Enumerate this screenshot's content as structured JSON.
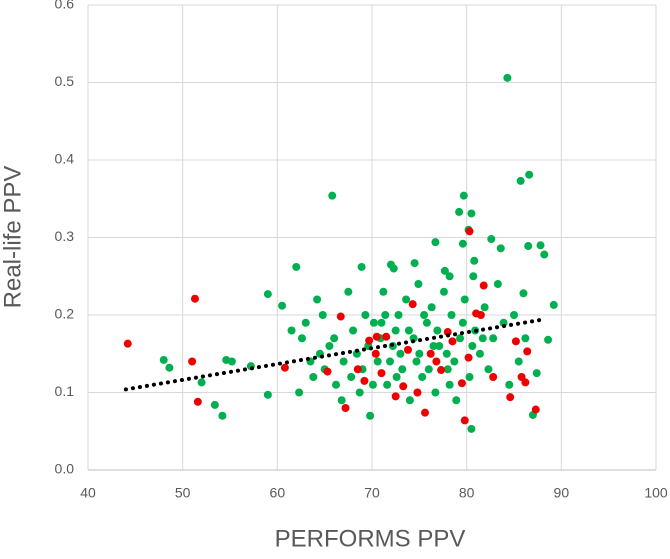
{
  "chart_data": {
    "type": "scatter",
    "x_label": "PERFORMS PPV",
    "y_label": "Real-life PPV",
    "xlim": [
      40,
      100
    ],
    "xticks": [
      40,
      50,
      60,
      70,
      80,
      90,
      100
    ],
    "ylim": [
      0,
      0.6
    ],
    "yticks": [
      {
        "value": 0,
        "label": "0.0"
      },
      0.1,
      0.2,
      0.3,
      0.4,
      0.5,
      0.6
    ],
    "grid": true,
    "series": [
      {
        "color": "#00b050",
        "x": [
          84.3,
          65.8,
          79.7,
          86.6,
          85.7,
          80.5,
          79.2,
          62,
          68.9,
          59,
          48,
          48.6,
          52,
          53.4,
          54.2,
          54.6,
          55.2,
          57.2,
          59,
          87,
          87.4,
          88.6,
          89.2,
          88.2,
          87.8,
          86.5,
          86,
          80.5,
          79.6,
          76.7,
          82.6,
          80.2,
          80.8,
          80.7,
          72,
          72.3,
          74.5,
          77.7,
          78.2,
          83.6,
          60.5,
          61.5,
          62.6,
          63.5,
          64.2,
          64.8,
          65.5,
          66.2,
          66.8,
          67.5,
          68,
          68.4,
          69.3,
          69.8,
          70.2,
          70.6,
          71.2,
          71.6,
          72.2,
          72.8,
          73.2,
          73.6,
          74,
          74.4,
          74.9,
          75.3,
          75.8,
          76.3,
          76.7,
          77.1,
          77.6,
          78,
          78.4,
          78.9,
          79.3,
          79.8,
          80.3,
          80.9,
          81.4,
          81.9,
          82.3,
          82.8,
          83.3,
          83.9,
          84.5,
          85,
          85.5,
          86.2,
          62.3,
          63.8,
          65,
          66,
          67,
          68.7,
          69.6,
          70.9,
          71.9,
          72.6,
          73.9,
          75,
          76,
          76.9,
          77.9,
          78.7,
          79.6,
          80.6,
          81.7,
          70.1,
          71.4,
          73,
          74.7,
          76.5,
          78.2,
          63,
          64.5,
          67.8,
          69,
          71,
          72.5,
          75.5
        ],
        "values": [
          0.506,
          0.354,
          0.354,
          0.381,
          0.373,
          0.331,
          0.333,
          0.262,
          0.262,
          0.227,
          0.142,
          0.132,
          0.113,
          0.084,
          0.07,
          0.142,
          0.14,
          0.134,
          0.097,
          0.071,
          0.125,
          0.168,
          0.213,
          0.278,
          0.29,
          0.289,
          0.228,
          0.053,
          0.292,
          0.294,
          0.298,
          0.31,
          0.27,
          0.25,
          0.265,
          0.26,
          0.267,
          0.257,
          0.25,
          0.286,
          0.212,
          0.18,
          0.17,
          0.14,
          0.22,
          0.2,
          0.16,
          0.11,
          0.09,
          0.23,
          0.18,
          0.15,
          0.2,
          0.07,
          0.19,
          0.14,
          0.23,
          0.11,
          0.16,
          0.2,
          0.13,
          0.22,
          0.09,
          0.17,
          0.24,
          0.12,
          0.19,
          0.21,
          0.1,
          0.16,
          0.23,
          0.13,
          0.2,
          0.09,
          0.17,
          0.22,
          0.12,
          0.18,
          0.15,
          0.21,
          0.13,
          0.17,
          0.24,
          0.19,
          0.11,
          0.2,
          0.14,
          0.17,
          0.1,
          0.12,
          0.13,
          0.17,
          0.14,
          0.1,
          0.16,
          0.17,
          0.14,
          0.12,
          0.18,
          0.15,
          0.13,
          0.18,
          0.15,
          0.14,
          0.19,
          0.16,
          0.17,
          0.11,
          0.2,
          0.15,
          0.14,
          0.16,
          0.11,
          0.19,
          0.15,
          0.12,
          0.13,
          0.19,
          0.18,
          0.2
        ]
      },
      {
        "color": "#ee0000",
        "x": [
          44.2,
          51.3,
          51,
          51.6,
          60.8,
          67.2,
          66.7,
          75.6,
          79.8,
          80.3,
          81.8,
          84.6,
          85.2,
          86.4,
          86.2,
          87.3,
          85.8,
          81.5,
          81,
          78.5,
          74.3,
          71.5,
          69.7,
          70.5,
          72.5,
          73.3,
          76.2,
          77.3,
          79.5,
          80.2,
          71,
          69.2,
          65.3,
          68.5,
          74.8,
          78,
          82.8,
          73.8,
          76.8,
          70.4
        ],
        "values": [
          0.163,
          0.221,
          0.14,
          0.088,
          0.132,
          0.08,
          0.198,
          0.074,
          0.064,
          0.308,
          0.238,
          0.094,
          0.166,
          0.153,
          0.113,
          0.078,
          0.12,
          0.2,
          0.202,
          0.166,
          0.214,
          0.172,
          0.167,
          0.172,
          0.095,
          0.108,
          0.15,
          0.129,
          0.112,
          0.145,
          0.125,
          0.115,
          0.127,
          0.13,
          0.1,
          0.178,
          0.12,
          0.155,
          0.14,
          0.15
        ]
      }
    ],
    "trendline": {
      "color": "#000000",
      "x": [
        44,
        88
      ],
      "values": [
        0.104,
        0.194
      ]
    }
  }
}
